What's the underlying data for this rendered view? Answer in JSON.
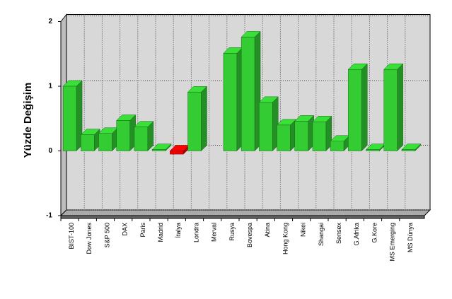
{
  "chart_data": {
    "type": "bar3d",
    "y_axis_label": "Yüzde Değişim",
    "categories": [
      "BIST-100",
      "Dow Jones",
      "S&P 500",
      "DAX",
      "Paris",
      "Madrid",
      "İtalya",
      "Londra",
      "Merval",
      "Rusya",
      "Bovespa",
      "Atina",
      "Hong Kong",
      "Nikei",
      "Shangai",
      "Sensex",
      "G.Afrika",
      "G.Kore",
      "MS Emerging",
      "MS Dünya"
    ],
    "values": [
      1.0,
      0.25,
      0.27,
      0.47,
      0.37,
      0.02,
      -0.05,
      0.91,
      null,
      1.51,
      1.76,
      0.75,
      0.4,
      0.46,
      0.45,
      0.15,
      1.26,
      0.02,
      1.26,
      0.02
    ],
    "color": "#33cc33",
    "negative_color": "#ee0000",
    "ylim": [
      -1,
      2
    ],
    "yticks": [
      -1,
      0,
      1,
      2
    ],
    "grid": true
  }
}
